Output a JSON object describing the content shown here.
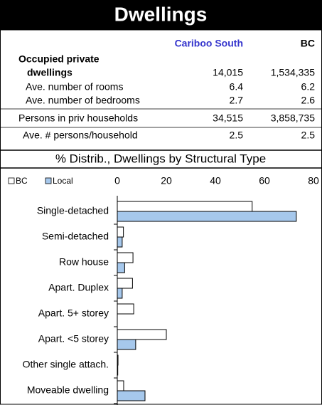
{
  "header": {
    "title": "Dwellings"
  },
  "table": {
    "columns": [
      "Cariboo South",
      "BC"
    ],
    "rows": [
      {
        "label": [
          "Occupied private",
          "dwellings"
        ],
        "values": [
          "14,015",
          "1,534,335"
        ]
      },
      {
        "label": [
          "Ave. number of rooms"
        ],
        "values": [
          "6.4",
          "6.2"
        ]
      },
      {
        "label": [
          "Ave. number of bedrooms"
        ],
        "values": [
          "2.7",
          "2.6"
        ]
      },
      {
        "label": [
          "Persons in priv households"
        ],
        "values": [
          "34,515",
          "3,858,735"
        ]
      },
      {
        "label": [
          "Ave. # persons/household"
        ],
        "values": [
          "2.5",
          "2.5"
        ]
      }
    ]
  },
  "chart_data": {
    "type": "bar",
    "orientation": "horizontal",
    "title": "% Distrib., Dwellings by Structural Type",
    "categories": [
      "Single-detached",
      "Semi-detached",
      "Row house",
      "Apart. Duplex",
      "Apart. 5+ storey",
      "Apart. <5 storey",
      "Other single attach.",
      "Moveable dwelling"
    ],
    "series": [
      {
        "name": "BC",
        "color": "#ffffff",
        "values": [
          55,
          2.5,
          6.4,
          6.2,
          6.7,
          20,
          0.3,
          2.6
        ]
      },
      {
        "name": "Local",
        "color": "#a6c8ec",
        "values": [
          73,
          2,
          3,
          2,
          0,
          7.5,
          0.2,
          11.3
        ]
      }
    ],
    "xlim": [
      0,
      80
    ],
    "xticks": [
      0,
      20,
      40,
      60,
      80
    ],
    "grid": false,
    "legend": "top-left"
  }
}
